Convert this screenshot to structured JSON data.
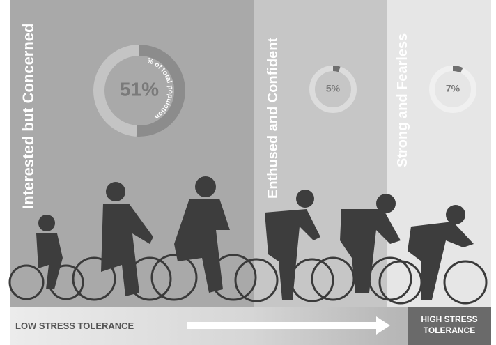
{
  "chart_data": [
    {
      "type": "donut",
      "title": "Interested but Concerned",
      "values": [
        51
      ],
      "value_labels": [
        "51%"
      ],
      "annotation": "% of total population",
      "color": "#8c8c8c"
    },
    {
      "type": "donut",
      "title": "Enthused and Confident",
      "values": [
        5
      ],
      "value_labels": [
        "5%"
      ],
      "color": "#6f6f6f"
    },
    {
      "type": "donut",
      "title": "Strong and Fearless",
      "values": [
        7
      ],
      "value_labels": [
        "7%"
      ],
      "color": "#6f6f6f"
    }
  ],
  "footer": {
    "left": "LOW STRESS TOLERANCE",
    "right": "HIGH STRESS TOLERANCE"
  }
}
